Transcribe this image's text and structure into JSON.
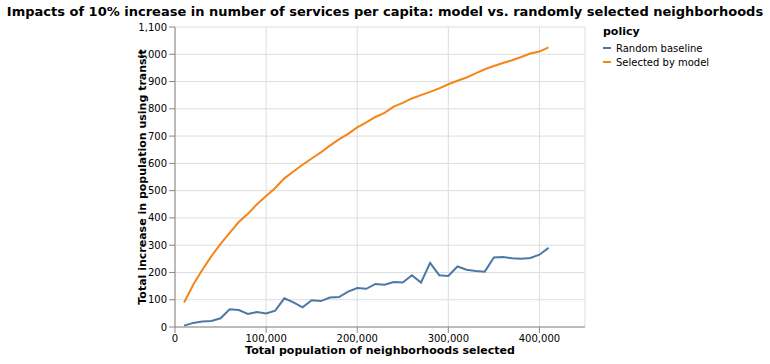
{
  "chart_data": {
    "type": "line",
    "title": "Impacts of 10% increase in number of services per capita: model vs. randomly selected neighborhoods",
    "x_label": "Total population of neighborhoods selected",
    "y_label": "Total increase in population using transit",
    "legend_title": "policy",
    "legend": "right",
    "grid": true,
    "x": [
      10000,
      20000,
      30000,
      40000,
      50000,
      60000,
      70000,
      80000,
      90000,
      100000,
      110000,
      120000,
      130000,
      140000,
      150000,
      160000,
      170000,
      180000,
      190000,
      200000,
      210000,
      220000,
      230000,
      240000,
      250000,
      260000,
      270000,
      280000,
      290000,
      300000,
      310000,
      320000,
      330000,
      340000,
      350000,
      360000,
      370000,
      380000,
      390000,
      400000,
      410000
    ],
    "series": [
      {
        "name": "Random baseline",
        "color": "#4c78a8",
        "values": [
          5,
          15,
          20,
          22,
          32,
          65,
          62,
          48,
          55,
          50,
          60,
          105,
          90,
          72,
          98,
          95,
          108,
          110,
          130,
          143,
          140,
          158,
          155,
          165,
          163,
          190,
          163,
          235,
          190,
          187,
          222,
          210,
          205,
          203,
          255,
          257,
          252,
          250,
          253,
          265,
          290
        ]
      },
      {
        "name": "Selected by model",
        "color": "#f58518",
        "values": [
          90,
          155,
          210,
          260,
          305,
          345,
          385,
          415,
          450,
          480,
          510,
          545,
          570,
          595,
          618,
          640,
          665,
          688,
          708,
          732,
          750,
          770,
          785,
          808,
          822,
          838,
          850,
          862,
          875,
          890,
          903,
          915,
          930,
          945,
          957,
          968,
          978,
          990,
          1003,
          1010,
          1025
        ]
      }
    ],
    "xlim": [
      0,
      450000
    ],
    "xticks": [
      0,
      {
        "value": 100000,
        "label": "100,000"
      },
      {
        "value": 200000,
        "label": "200,000"
      },
      {
        "value": 300000,
        "label": "300,000"
      },
      {
        "value": 400000,
        "label": "400,000"
      }
    ],
    "ylim": [
      0,
      1100
    ],
    "yticks": [
      0,
      100,
      200,
      300,
      400,
      500,
      600,
      700,
      800,
      900,
      {
        "value": 1000,
        "label": "1,000"
      },
      {
        "value": 1100,
        "label": "1,100"
      }
    ]
  }
}
